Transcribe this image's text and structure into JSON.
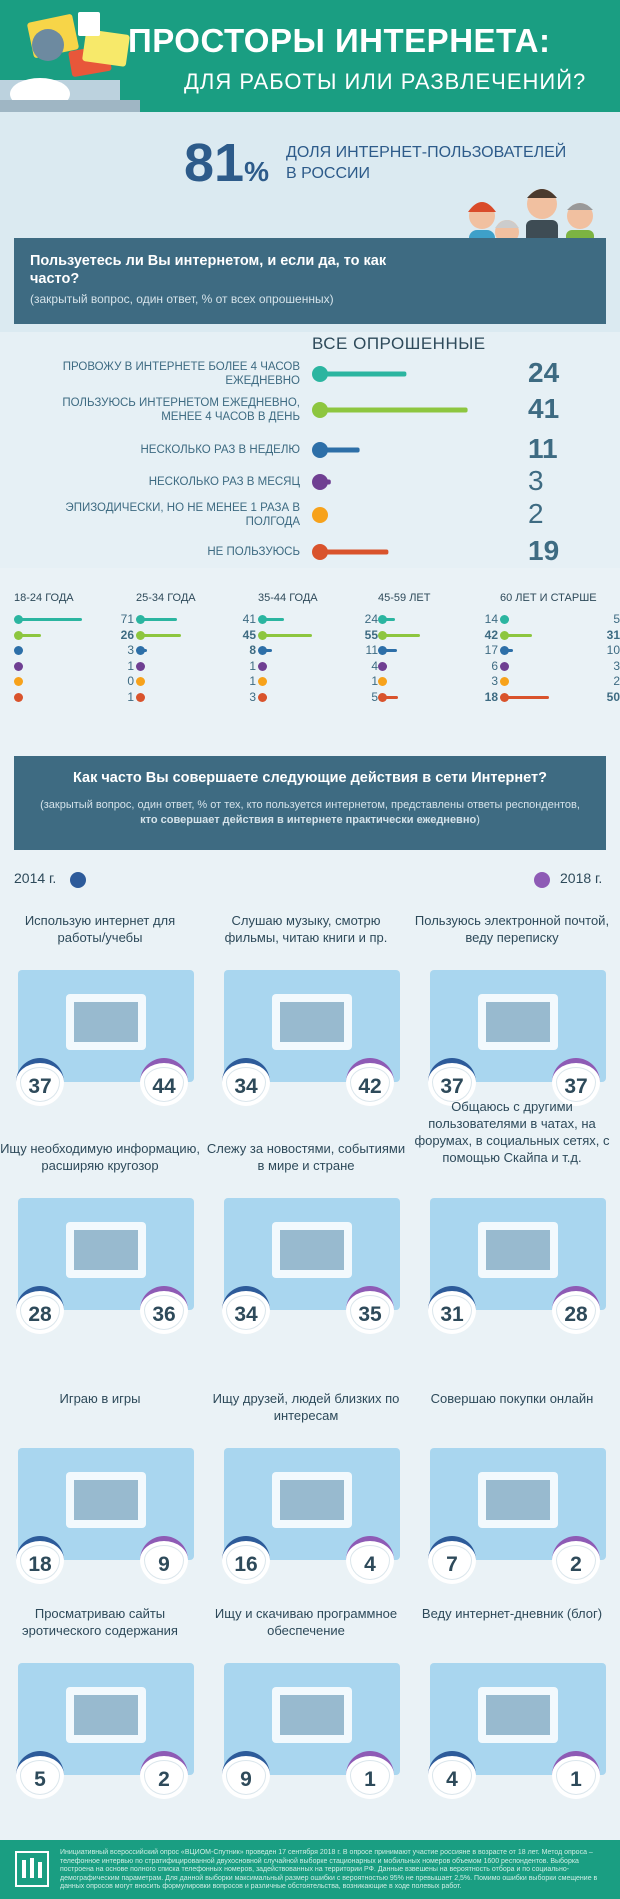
{
  "header": {
    "title": "ПРОСТОРЫ ИНТЕРНЕТА:",
    "subtitle": "ДЛЯ РАБОТЫ ИЛИ РАЗВЛЕЧЕНИЙ?"
  },
  "stat": {
    "value": "81",
    "unit": "%",
    "label1": "ДОЛЯ ИНТЕРНЕТ-ПОЛЬЗОВАТЕЛЕЙ",
    "label2": "В РОССИИ"
  },
  "question1": {
    "text": "Пользуетесь ли Вы интернетом, и если да, то как часто?",
    "note": "(закрытый вопрос, один ответ, % от всех опрошенных)"
  },
  "chart_data": [
    {
      "type": "bar",
      "title": "ВСЕ ОПРОШЕННЫЕ",
      "categories": [
        "ПРОВОЖУ В ИНТЕРНЕТЕ БОЛЕЕ 4 ЧАСОВ ЕЖЕДНЕВНО",
        "ПОЛЬЗУЮСЬ ИНТЕРНЕТОМ ЕЖЕДНЕВНО, МЕНЕЕ 4 ЧАСОВ В ДЕНЬ",
        "НЕСКОЛЬКО РАЗ В НЕДЕЛЮ",
        "НЕСКОЛЬКО РАЗ В МЕСЯЦ",
        "ЭПИЗОДИЧЕСКИ, НО НЕ МЕНЕЕ 1 РАЗА В ПОЛГОДА",
        "НЕ ПОЛЬЗУЮСЬ"
      ],
      "values": [
        24,
        41,
        11,
        3,
        2,
        19
      ],
      "colors": [
        "#2bb5a0",
        "#8dc63f",
        "#2d6fa8",
        "#6f3f92",
        "#f7a21b",
        "#d9532c"
      ]
    },
    {
      "type": "bar",
      "groups": [
        {
          "name": "18-24 ГОДА",
          "values": [
            71,
            26,
            3,
            1,
            0,
            1
          ]
        },
        {
          "name": "25-34 ГОДА",
          "values": [
            41,
            45,
            8,
            1,
            1,
            3
          ]
        },
        {
          "name": "35-44 ГОДА",
          "values": [
            24,
            55,
            11,
            4,
            1,
            5
          ]
        },
        {
          "name": "45-59 ЛЕТ",
          "values": [
            14,
            42,
            17,
            6,
            3,
            18
          ]
        },
        {
          "name": "60 ЛЕТ И СТАРШЕ",
          "values": [
            5,
            31,
            10,
            3,
            2,
            50
          ]
        }
      ],
      "bold": [
        [
          0,
          1
        ],
        [
          1,
          1
        ],
        [
          1,
          2
        ],
        [
          2,
          1
        ],
        [
          3,
          1
        ],
        [
          3,
          5
        ],
        [
          4,
          1
        ],
        [
          4,
          5
        ]
      ]
    },
    {
      "type": "bar",
      "series": [
        {
          "name": "2014 г."
        },
        {
          "name": "2018 г."
        }
      ],
      "categories": [
        "Использую интернет для работы/учебы",
        "Слушаю музыку, смотрю фильмы, читаю книги и пр.",
        "Пользуюсь электронной почтой, веду переписку",
        "Ищу необходимую информацию, расширяю кругозор",
        "Слежу за новостями, событиями в мире и стране",
        "Общаюсь с другими пользователями в чатах, на форумах, в социальных сетях, с помощью Скайпа и т.д.",
        "Играю в игры",
        "Ищу друзей, людей близких по интересам",
        "Совершаю покупки онлайн",
        "Просматриваю сайты эротического содержания",
        "Ищу и скачиваю программное обеспечение",
        "Веду интернет-дневник (блог)"
      ],
      "values_2014": [
        37,
        34,
        37,
        28,
        34,
        31,
        18,
        16,
        7,
        5,
        9,
        4
      ],
      "values_2018": [
        44,
        42,
        37,
        36,
        35,
        28,
        9,
        4,
        2,
        2,
        1,
        1
      ]
    }
  ],
  "question2": {
    "text": "Как часто Вы совершаете следующие действия в сети Интернет?",
    "note": "(закрытый вопрос, один ответ, % от тех, кто пользуется интернетом, представлены ответы респондентов,",
    "note_bold": "кто совершает действия в интернете практически ежедневно",
    "note_end": ")"
  },
  "legend": {
    "y2014": "2014 г.",
    "y2018": "2018 г.",
    "c2014": "#2d5b9a",
    "c2018": "#8e5bb5"
  },
  "footer": "Инициативный всероссийский опрос «ВЦИОМ-Спутник» проведен 17 сентября 2018 г. В опросе принимают участие россияне в возрасте от 18 лет. Метод опроса – телефонное интервью по стратифицированной двухосновной случайной выборке стационарных и мобильных номеров объемом 1600 респондентов. Выборка построена на основе полного списка телефонных номеров, задействованных на территории РФ. Данные взвешены на вероятность отбора и по социально-демографическим параметрам. Для данной выборки максимальный размер ошибки с вероятностью 95% не превышает 2,5%. Помимо ошибки выборки смещение в данных опросов могут вносить формулировки вопросов и различные обстоятельства, возникающие в ходе полевых работ."
}
